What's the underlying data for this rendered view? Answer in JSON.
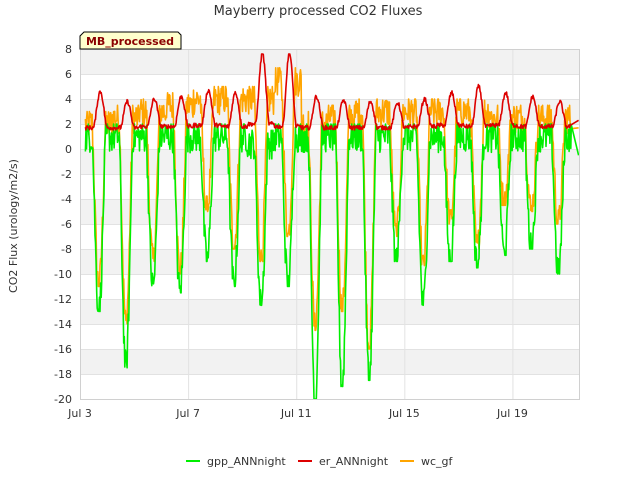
{
  "chart_data": {
    "type": "line",
    "title": "Mayberry processed CO2 Fluxes",
    "badge": "MB_processed",
    "ylabel": "CO2 Flux (urology/m2/s)",
    "xlabel": "",
    "ylim": [
      -20,
      8
    ],
    "yticks": [
      8,
      6,
      4,
      2,
      0,
      -2,
      -4,
      -6,
      -8,
      -10,
      -12,
      -14,
      -16,
      -18,
      -20
    ],
    "xlim": [
      0,
      18.5
    ],
    "xticks": [
      {
        "value": 0,
        "label": "Jul 3"
      },
      {
        "value": 4,
        "label": "Jul 7"
      },
      {
        "value": 8,
        "label": "Jul 11"
      },
      {
        "value": 12,
        "label": "Jul 15"
      },
      {
        "value": 16,
        "label": "Jul 19"
      }
    ],
    "grid": true,
    "legend_position": "bottom",
    "series": [
      {
        "name": "gpp_ANNnight",
        "color": "#00ee00",
        "daily_min": [
          -13,
          -17.5,
          -11,
          -11.5,
          -9,
          -11,
          -12.5,
          -11,
          -20,
          -19,
          -18.5,
          -9,
          -12.5,
          -9,
          -9.5,
          -8.5,
          -8,
          -10
        ],
        "daily_max": [
          1,
          1,
          1,
          1,
          1,
          1,
          0.5,
          1,
          1,
          1,
          1,
          1,
          1,
          1,
          1,
          1,
          1,
          1
        ],
        "end_value": -0.5
      },
      {
        "name": "er_ANNnight",
        "color": "#dd0000",
        "daily_min": [
          1.7,
          1.7,
          1.8,
          1.8,
          1.9,
          1.8,
          2.0,
          1.8,
          1.7,
          1.7,
          1.7,
          1.7,
          1.8,
          1.9,
          1.8,
          1.9,
          1.8,
          1.8
        ],
        "daily_max": [
          4.6,
          3.8,
          4.0,
          4.2,
          4.7,
          4.5,
          7.6,
          7.6,
          4.2,
          3.9,
          3.8,
          3.7,
          4.0,
          4.5,
          5.0,
          4.5,
          4.2,
          3.8
        ],
        "end_value": 2.3
      },
      {
        "name": "wc_gf",
        "color": "#ffa500",
        "daily_min": [
          -11,
          -14,
          -9,
          -10,
          -5,
          -8,
          -9,
          -7,
          -14.5,
          -13,
          -16,
          -7,
          -9.5,
          -6,
          -8,
          -4.5,
          -5,
          -6
        ],
        "daily_max": [
          2,
          2.5,
          3,
          3.5,
          4,
          4,
          4,
          5.5,
          2,
          2.5,
          3,
          3,
          3,
          3,
          3,
          2.5,
          2.5,
          2.5
        ],
        "end_value": 1.7
      }
    ]
  }
}
